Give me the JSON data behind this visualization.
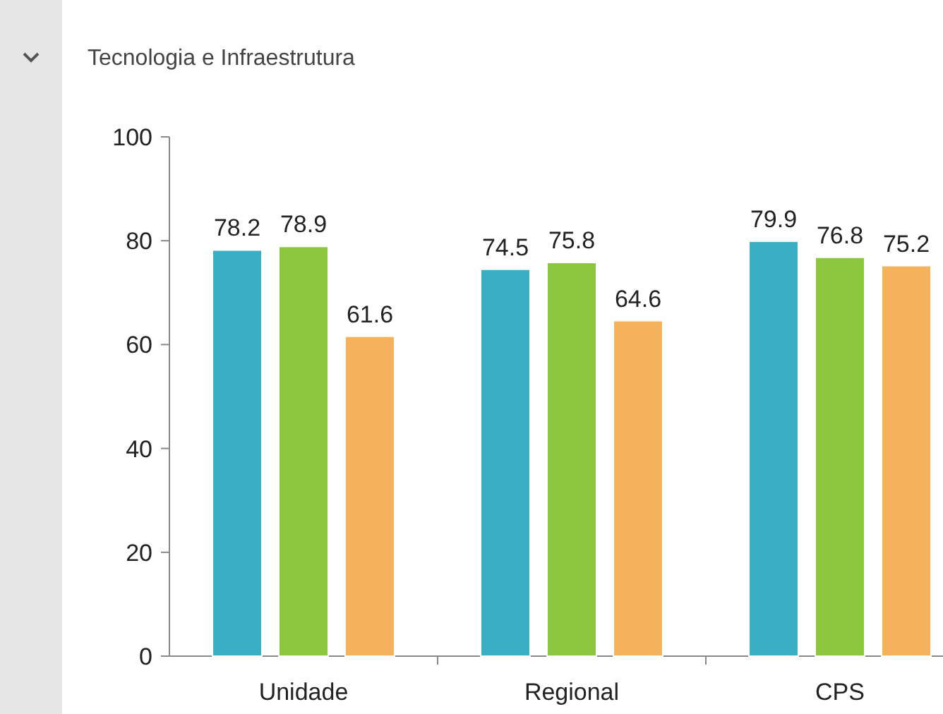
{
  "chart_data": {
    "type": "bar",
    "title": "Tecnologia e Infraestrutura",
    "categories": [
      "Unidade",
      "Regional",
      "CPS"
    ],
    "series": [
      {
        "color": "#3aaec4",
        "values": [
          78.2,
          74.5,
          79.9
        ]
      },
      {
        "color": "#8cc63f",
        "values": [
          78.9,
          75.8,
          76.8
        ]
      },
      {
        "color": "#f5b25c",
        "values": [
          61.6,
          64.6,
          75.2
        ]
      }
    ],
    "ylim": [
      0,
      100
    ],
    "yticks": [
      0,
      20,
      40,
      60,
      80,
      100
    ],
    "data_labels": true
  }
}
